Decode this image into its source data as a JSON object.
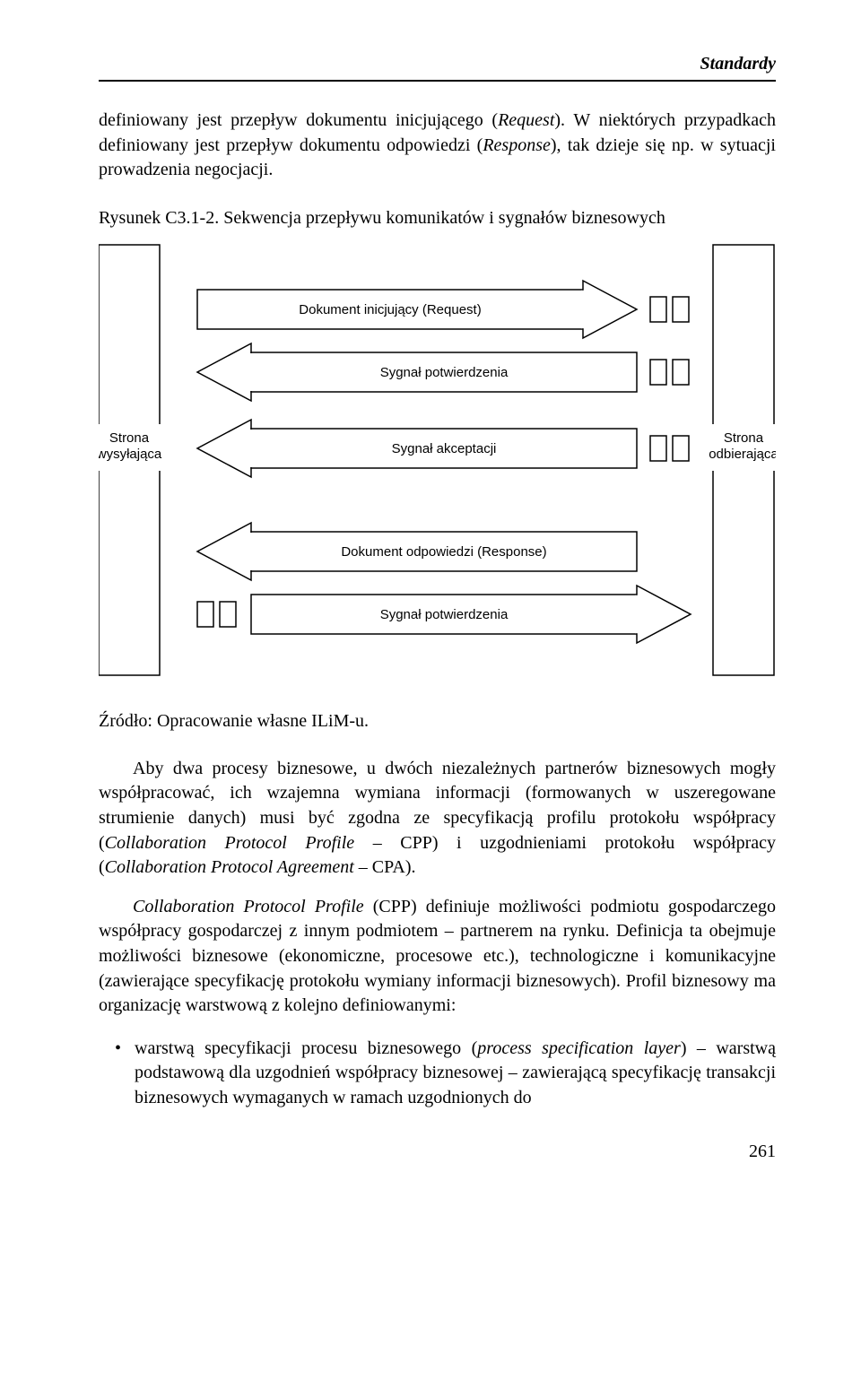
{
  "header": {
    "title": "Standardy"
  },
  "intro": {
    "html": "definiowany jest przepływ dokumentu inicjującego (<i>Request</i>). W niektórych przypadkach definiowany jest przepływ dokumentu odpowiedzi (<i>Response</i>), tak dzieje się np. w sytuacji prowadzenia negocjacji."
  },
  "figure": {
    "caption": "Rysunek C3.1-2. Sekwencja przepływu komunikatów i sygnałów biznesowych",
    "left_label_1": "Strona",
    "left_label_2": "wysyłająca",
    "right_label_1": "Strona",
    "right_label_2": "odbierająca",
    "msg1": "Dokument inicjujący (Request)",
    "msg2": "Sygnał potwierdzenia",
    "msg3": "Sygnał akceptacji",
    "msg4": "Dokument odpowiedzi (Response)",
    "msg5": "Sygnał potwierdzenia",
    "stroke": "#000000",
    "fill": "#ffffff"
  },
  "source": "Źródło: Opracowanie własne ILiM-u.",
  "para1": {
    "html": "Aby dwa procesy biznesowe, u dwóch niezależnych partnerów biznesowych mogły współpracować, ich wzajemna wymiana informacji (formowanych w uszeregowane strumienie danych) musi być zgodna ze specyfikacją profilu protokołu współpracy (<i>Collaboration Protocol Profile</i> – CPP) i uzgodnieniami protokołu współpracy (<i>Collaboration Protocol Agreement</i> – CPA)."
  },
  "para2": {
    "html": "<i>Collaboration Protocol Profile</i> (CPP) definiuje możliwości podmiotu gospodarczego współpracy gospodarczej z innym podmiotem – partnerem na rynku. Definicja ta obejmuje możliwości biznesowe (ekonomiczne, procesowe etc.), technologiczne i komunikacyjne (zawierające specyfikację protokołu wymiany informacji biznesowych). Profil biznesowy ma organizację warstwową z kolejno definiowanymi:"
  },
  "bullet1": {
    "html": "warstwą specyfikacji procesu biznesowego (<i>process specification layer</i>) – warstwą podstawową dla uzgodnień współpracy biznesowej – zawierającą specyfikację transakcji biznesowych wymaganych w ramach uzgodnionych do"
  },
  "pageNumber": "261"
}
